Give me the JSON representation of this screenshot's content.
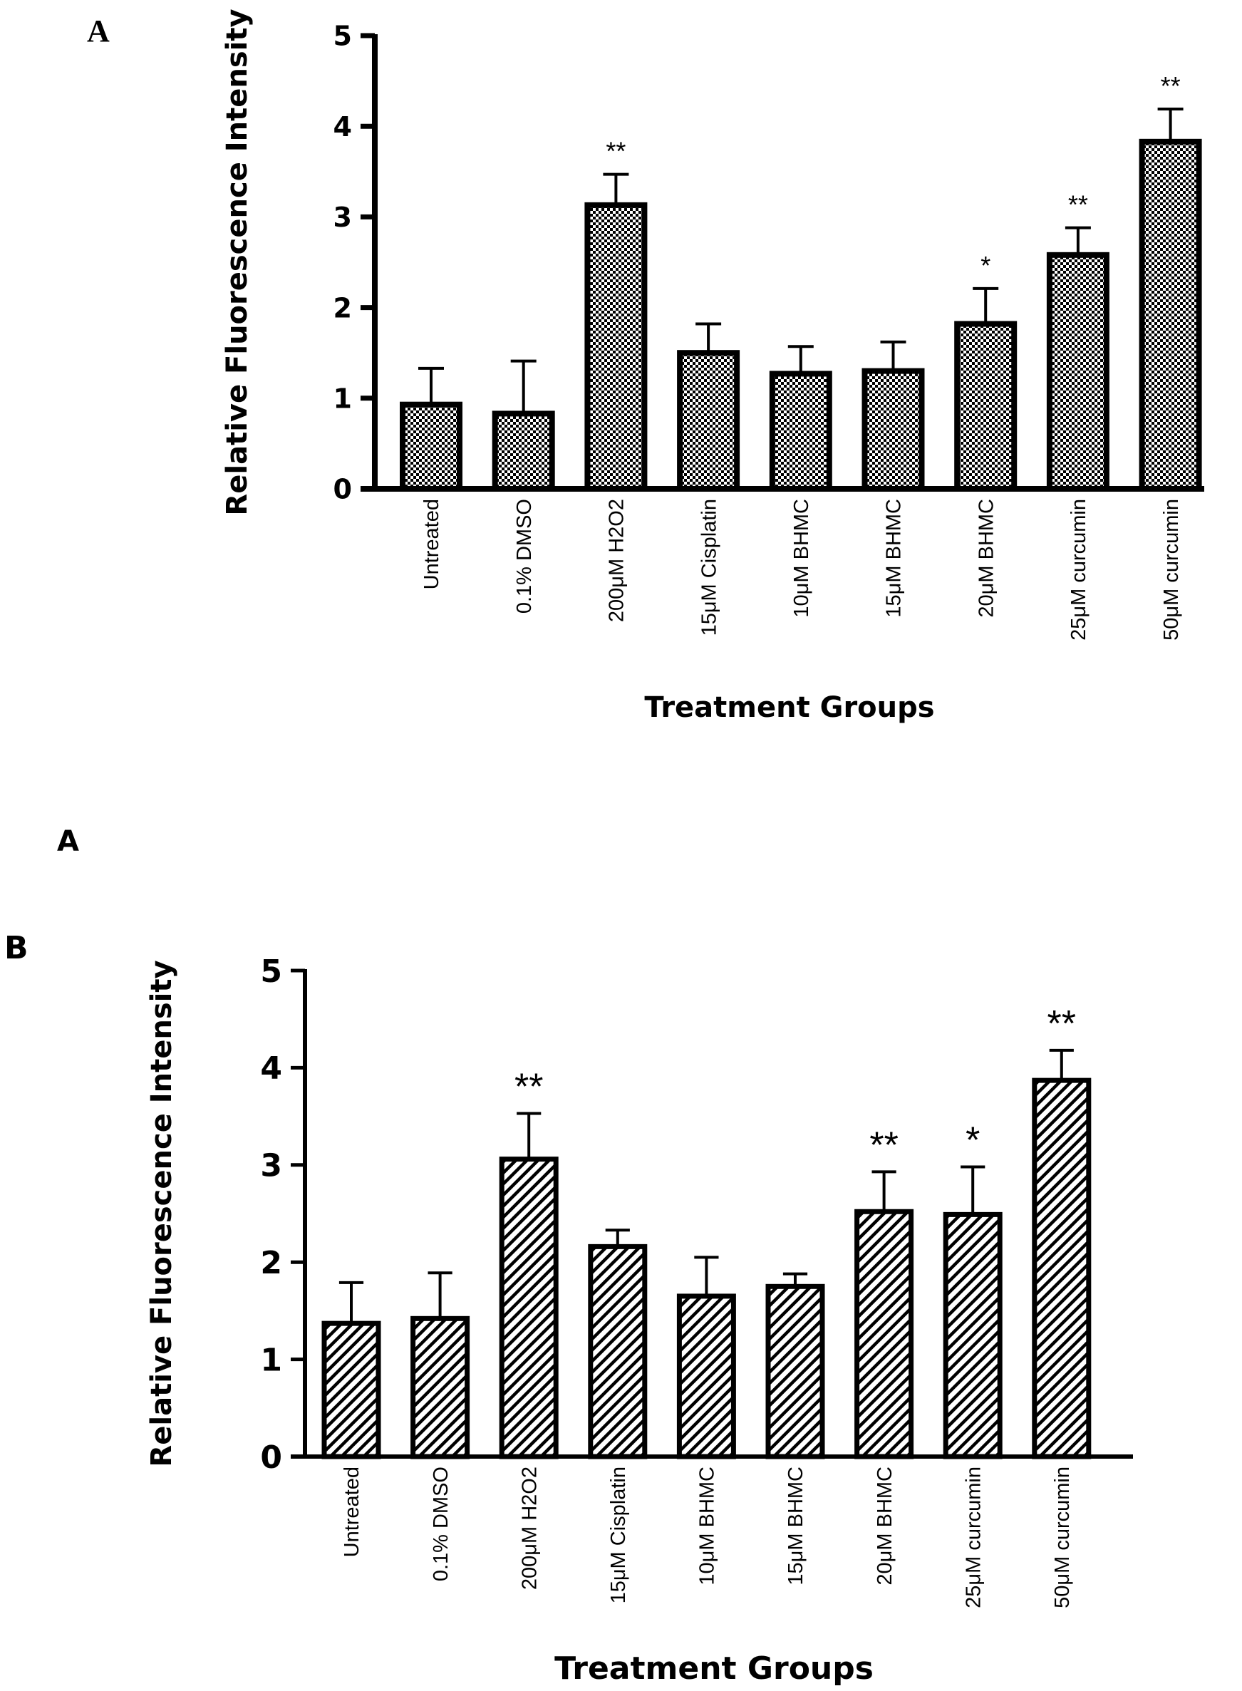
{
  "panel_labels": {
    "top": "A",
    "middle": "A",
    "bottom": "B"
  },
  "chart_data": [
    {
      "type": "bar",
      "panel": "A",
      "pattern": "checkered",
      "title": "",
      "xlabel": "Treatment Groups",
      "ylabel": "Relative Fluorescence Intensity",
      "ylim": [
        0,
        5
      ],
      "yticks": [
        0,
        1,
        2,
        3,
        4,
        5
      ],
      "categories": [
        "Untreated",
        "0.1% DMSO",
        "200μM H2O2",
        "15μM Cisplatin",
        "10μM BHMC",
        "15μM BHMC",
        "20μM BHMC",
        "25μM curcumin",
        "50μM curcumin"
      ],
      "values": [
        0.93,
        0.83,
        3.13,
        1.5,
        1.27,
        1.3,
        1.82,
        2.58,
        3.83
      ],
      "errors": [
        0.4,
        0.58,
        0.34,
        0.32,
        0.3,
        0.32,
        0.39,
        0.3,
        0.36
      ],
      "significance": [
        "",
        "",
        "**",
        "",
        "",
        "",
        "*",
        "**",
        "**"
      ]
    },
    {
      "type": "bar",
      "panel": "B",
      "pattern": "diagonal-hatch",
      "title": "",
      "xlabel": "Treatment Groups",
      "ylabel": "Relative Fluorescence Intensity",
      "ylim": [
        0,
        5
      ],
      "yticks": [
        0,
        1,
        2,
        3,
        4,
        5
      ],
      "categories": [
        "Untreated",
        "0.1% DMSO",
        "200μM H2O2",
        "15μM Cisplatin",
        "10μM BHMC",
        "15μM BHMC",
        "20μM BHMC",
        "25μM curcumin",
        "50μM curcumin"
      ],
      "values": [
        1.37,
        1.42,
        3.06,
        2.16,
        1.65,
        1.75,
        2.52,
        2.49,
        3.87
      ],
      "errors": [
        0.42,
        0.47,
        0.47,
        0.17,
        0.4,
        0.13,
        0.41,
        0.49,
        0.31
      ],
      "significance": [
        "",
        "",
        "**",
        "",
        "",
        "",
        "**",
        "*",
        "**"
      ]
    }
  ]
}
